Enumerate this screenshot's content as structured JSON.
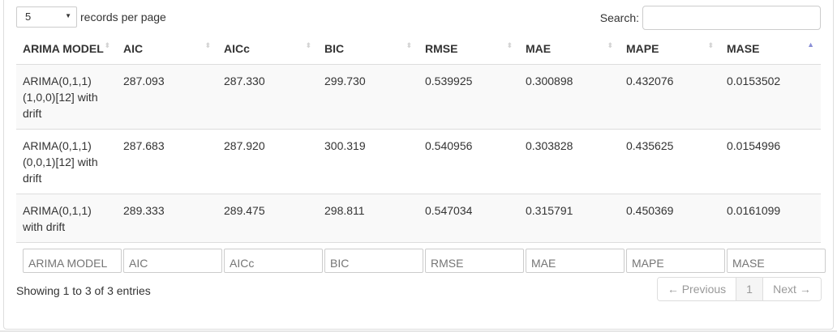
{
  "length_menu": {
    "value": "5",
    "arrow": "▼",
    "label": "records per page"
  },
  "search": {
    "label": "Search:",
    "value": ""
  },
  "columns": [
    "ARIMA MODEL",
    "AIC",
    "AICc",
    "BIC",
    "RMSE",
    "MAE",
    "MAPE",
    "MASE"
  ],
  "sort_icons": {
    "unsorted": "⬍",
    "ascending": "▲"
  },
  "rows": [
    {
      "lines": [
        "ARIMA(0,1,1)",
        "(1,0,0)[12] with",
        "drift"
      ],
      "values": [
        "287.093",
        "287.330",
        "299.730",
        "0.539925",
        "0.300898",
        "0.432076",
        "0.0153502"
      ]
    },
    {
      "lines": [
        "ARIMA(0,1,1)",
        "(0,0,1)[12] with",
        "drift"
      ],
      "values": [
        "287.683",
        "287.920",
        "300.319",
        "0.540956",
        "0.303828",
        "0.435625",
        "0.0154996"
      ]
    },
    {
      "lines": [
        "ARIMA(0,1,1)",
        "with drift"
      ],
      "values": [
        "289.333",
        "289.475",
        "298.811",
        "0.547034",
        "0.315791",
        "0.450369",
        "0.0161099"
      ]
    }
  ],
  "info": "Showing 1 to 3 of 3 entries",
  "pagination": {
    "previous": "← Previous",
    "page": "1",
    "next": "Next →"
  },
  "colors": {
    "border": "#dddddd",
    "odd_row": "#f9f9f9",
    "sort_active": "#8a8fd6",
    "sort_inactive": "#d3d3d3",
    "pager_text": "#999999"
  }
}
